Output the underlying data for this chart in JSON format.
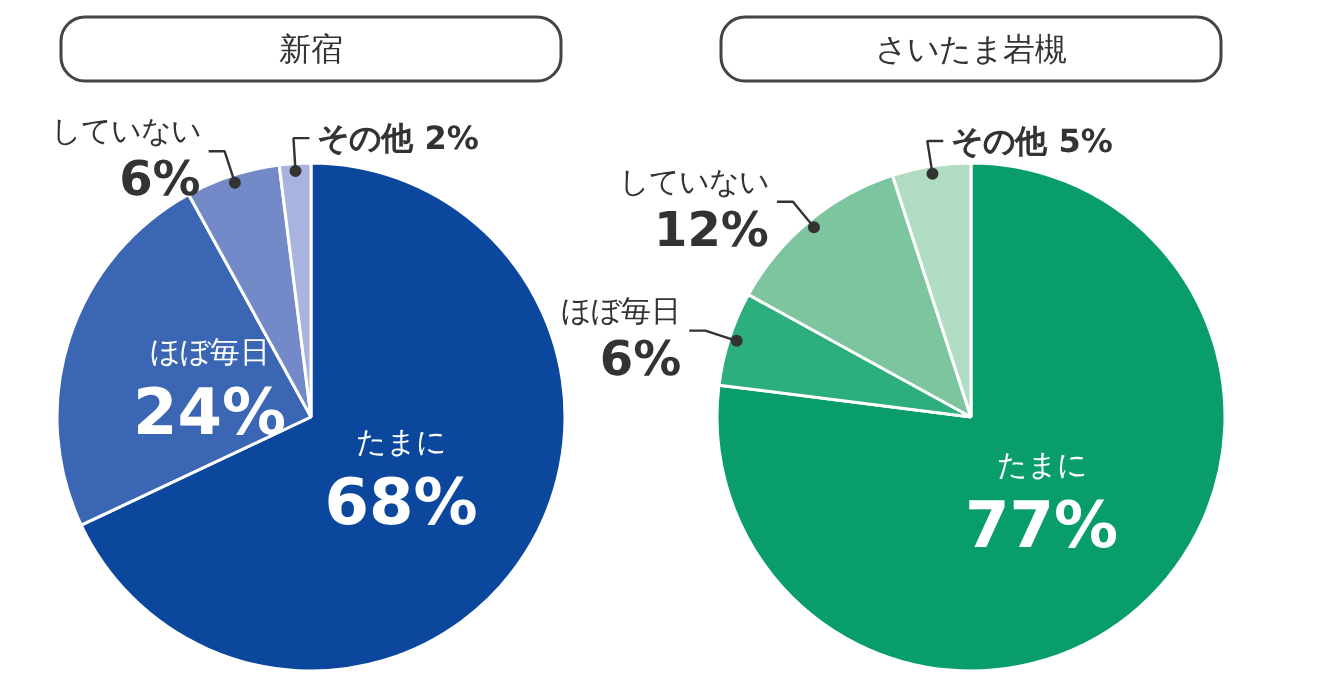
{
  "chart_data": [
    {
      "type": "pie",
      "title": "新宿",
      "categories": [
        "たまに",
        "ほぼ毎日",
        "していない",
        "その他"
      ],
      "values": [
        68,
        24,
        6,
        2
      ],
      "value_labels": [
        "68%",
        "24%",
        "6%",
        "2%"
      ],
      "colors": [
        "#0b479c",
        "#3b66b4",
        "#7489c8",
        "#a8b4df"
      ]
    },
    {
      "type": "pie",
      "title": "さいたま岩槻",
      "categories": [
        "たまに",
        "ほぼ毎日",
        "していない",
        "その他"
      ],
      "values": [
        77,
        6,
        12,
        5
      ],
      "value_labels": [
        "77%",
        "6%",
        "12%",
        "5%"
      ],
      "colors": [
        "#099e69",
        "#2daf7d",
        "#7cc59f",
        "#b1dcc4"
      ]
    }
  ]
}
